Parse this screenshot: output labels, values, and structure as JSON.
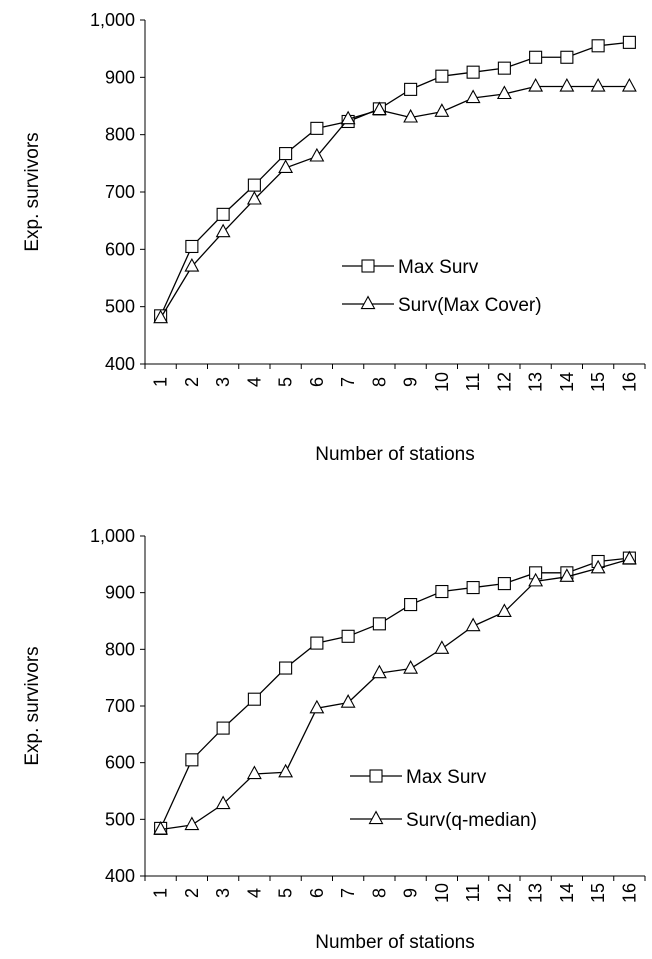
{
  "chart_data": [
    {
      "type": "line",
      "xlabel": "Number of stations",
      "ylabel": "Exp. survivors",
      "ylim": [
        400,
        1000
      ],
      "yticks": [
        "400",
        "500",
        "600",
        "700",
        "800",
        "900",
        "1,000"
      ],
      "categories": [
        "1",
        "2",
        "3",
        "4",
        "5",
        "6",
        "7",
        "8",
        "9",
        "10",
        "11",
        "12",
        "13",
        "14",
        "15",
        "16"
      ],
      "grid": false,
      "legend_position": "center-right",
      "series": [
        {
          "name": "Max Surv",
          "marker": "square",
          "values": [
            484,
            605,
            661,
            712,
            767,
            811,
            823,
            845,
            879,
            902,
            909,
            916,
            935,
            935,
            955,
            961
          ]
        },
        {
          "name": "Surv(Max Cover)",
          "marker": "triangle",
          "values": [
            480,
            570,
            630,
            687,
            742,
            762,
            827,
            843,
            830,
            840,
            864,
            871,
            884,
            884,
            884,
            884
          ]
        }
      ]
    },
    {
      "type": "line",
      "xlabel": "Number of stations",
      "ylabel": "Exp. survivors",
      "ylim": [
        400,
        1000
      ],
      "yticks": [
        "400",
        "500",
        "600",
        "700",
        "800",
        "900",
        "1,000"
      ],
      "categories": [
        "1",
        "2",
        "3",
        "4",
        "5",
        "6",
        "7",
        "8",
        "9",
        "10",
        "11",
        "12",
        "13",
        "14",
        "15",
        "16"
      ],
      "grid": false,
      "legend_position": "bottom-right",
      "series": [
        {
          "name": "Max Surv",
          "marker": "square",
          "values": [
            484,
            605,
            661,
            712,
            767,
            811,
            823,
            845,
            879,
            902,
            909,
            916,
            935,
            935,
            955,
            961
          ]
        },
        {
          "name": "Surv(q-median)",
          "marker": "triangle",
          "values": [
            482,
            490,
            527,
            580,
            583,
            696,
            706,
            758,
            766,
            801,
            841,
            866,
            920,
            928,
            943,
            959
          ]
        }
      ]
    }
  ]
}
